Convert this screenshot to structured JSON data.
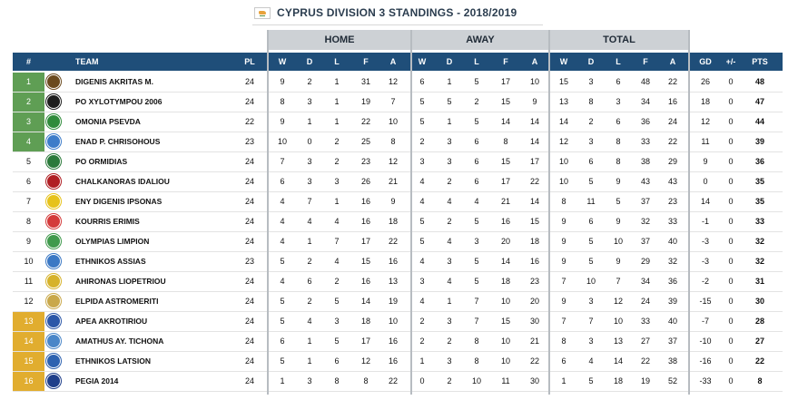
{
  "title": {
    "flag_icon": "cyprus-flag-icon",
    "text": "CYPRUS DIVISION 3 STANDINGS - 2018/2019"
  },
  "groups": {
    "home": "HOME",
    "away": "AWAY",
    "total": "TOTAL"
  },
  "columns": [
    "#",
    "TEAM",
    "PL",
    "W",
    "D",
    "L",
    "F",
    "A",
    "W",
    "D",
    "L",
    "F",
    "A",
    "W",
    "D",
    "L",
    "F",
    "A",
    "GD",
    "+/-",
    "PTS"
  ],
  "colors": {
    "header_bg": "#1f4e79",
    "group_bg": "#cdd1d5",
    "promotion": "#5f9e54",
    "relegation": "#e1ad2f"
  },
  "rows": [
    {
      "pos": "1",
      "zone": "green",
      "team": "DIGENIS AKRITAS M.",
      "logo": "#6b4a1e",
      "pl": "24",
      "hw": "9",
      "hd": "2",
      "hl": "1",
      "hf": "31",
      "ha": "12",
      "aw": "6",
      "ad": "1",
      "al": "5",
      "af": "17",
      "aa": "10",
      "tw": "15",
      "td": "3",
      "tl": "6",
      "tf": "48",
      "ta": "22",
      "gd": "26",
      "pm": "0",
      "pts": "48"
    },
    {
      "pos": "2",
      "zone": "green",
      "team": "PO XYLOTYMPOU 2006",
      "logo": "#1d1d1d",
      "pl": "24",
      "hw": "8",
      "hd": "3",
      "hl": "1",
      "hf": "19",
      "ha": "7",
      "aw": "5",
      "ad": "5",
      "al": "2",
      "af": "15",
      "aa": "9",
      "tw": "13",
      "td": "8",
      "tl": "3",
      "tf": "34",
      "ta": "16",
      "gd": "18",
      "pm": "0",
      "pts": "47"
    },
    {
      "pos": "3",
      "zone": "green",
      "team": "OMONIA PSEVDA",
      "logo": "#2e8b3a",
      "pl": "22",
      "hw": "9",
      "hd": "1",
      "hl": "1",
      "hf": "22",
      "ha": "10",
      "aw": "5",
      "ad": "1",
      "al": "5",
      "af": "14",
      "aa": "14",
      "tw": "14",
      "td": "2",
      "tl": "6",
      "tf": "36",
      "ta": "24",
      "gd": "12",
      "pm": "0",
      "pts": "44"
    },
    {
      "pos": "4",
      "zone": "green",
      "team": "ENAD P. CHRISOHOUS",
      "logo": "#3d7cc9",
      "pl": "23",
      "hw": "10",
      "hd": "0",
      "hl": "2",
      "hf": "25",
      "ha": "8",
      "aw": "2",
      "ad": "3",
      "al": "6",
      "af": "8",
      "aa": "14",
      "tw": "12",
      "td": "3",
      "tl": "8",
      "tf": "33",
      "ta": "22",
      "gd": "11",
      "pm": "0",
      "pts": "39"
    },
    {
      "pos": "5",
      "zone": "",
      "team": "PO ORMIDIAS",
      "logo": "#2a7a3a",
      "pl": "24",
      "hw": "7",
      "hd": "3",
      "hl": "2",
      "hf": "23",
      "ha": "12",
      "aw": "3",
      "ad": "3",
      "al": "6",
      "af": "15",
      "aa": "17",
      "tw": "10",
      "td": "6",
      "tl": "8",
      "tf": "38",
      "ta": "29",
      "gd": "9",
      "pm": "0",
      "pts": "36"
    },
    {
      "pos": "6",
      "zone": "",
      "team": "CHALKANORAS IDALIOU",
      "logo": "#b01e23",
      "pl": "24",
      "hw": "6",
      "hd": "3",
      "hl": "3",
      "hf": "26",
      "ha": "21",
      "aw": "4",
      "ad": "2",
      "al": "6",
      "af": "17",
      "aa": "22",
      "tw": "10",
      "td": "5",
      "tl": "9",
      "tf": "43",
      "ta": "43",
      "gd": "0",
      "pm": "0",
      "pts": "35"
    },
    {
      "pos": "7",
      "zone": "",
      "team": "ENY DIGENIS IPSONAS",
      "logo": "#e6c21a",
      "pl": "24",
      "hw": "4",
      "hd": "7",
      "hl": "1",
      "hf": "16",
      "ha": "9",
      "aw": "4",
      "ad": "4",
      "al": "4",
      "af": "21",
      "aa": "14",
      "tw": "8",
      "td": "11",
      "tl": "5",
      "tf": "37",
      "ta": "23",
      "gd": "14",
      "pm": "0",
      "pts": "35"
    },
    {
      "pos": "8",
      "zone": "",
      "team": "KOURRIS ERIMIS",
      "logo": "#d43a3a",
      "pl": "24",
      "hw": "4",
      "hd": "4",
      "hl": "4",
      "hf": "16",
      "ha": "18",
      "aw": "5",
      "ad": "2",
      "al": "5",
      "af": "16",
      "aa": "15",
      "tw": "9",
      "td": "6",
      "tl": "9",
      "tf": "32",
      "ta": "33",
      "gd": "-1",
      "pm": "0",
      "pts": "33"
    },
    {
      "pos": "9",
      "zone": "",
      "team": "OLYMPIAS LIMPION",
      "logo": "#3f9a4c",
      "pl": "24",
      "hw": "4",
      "hd": "1",
      "hl": "7",
      "hf": "17",
      "ha": "22",
      "aw": "5",
      "ad": "4",
      "al": "3",
      "af": "20",
      "aa": "18",
      "tw": "9",
      "td": "5",
      "tl": "10",
      "tf": "37",
      "ta": "40",
      "gd": "-3",
      "pm": "0",
      "pts": "32"
    },
    {
      "pos": "10",
      "zone": "",
      "team": "ETHNIKOS ASSIAS",
      "logo": "#3b78c4",
      "pl": "23",
      "hw": "5",
      "hd": "2",
      "hl": "4",
      "hf": "15",
      "ha": "16",
      "aw": "4",
      "ad": "3",
      "al": "5",
      "af": "14",
      "aa": "16",
      "tw": "9",
      "td": "5",
      "tl": "9",
      "tf": "29",
      "ta": "32",
      "gd": "-3",
      "pm": "0",
      "pts": "32"
    },
    {
      "pos": "11",
      "zone": "",
      "team": "AHIRONAS LIOPETRIOU",
      "logo": "#d6b22a",
      "pl": "24",
      "hw": "4",
      "hd": "6",
      "hl": "2",
      "hf": "16",
      "ha": "13",
      "aw": "3",
      "ad": "4",
      "al": "5",
      "af": "18",
      "aa": "23",
      "tw": "7",
      "td": "10",
      "tl": "7",
      "tf": "34",
      "ta": "36",
      "gd": "-2",
      "pm": "0",
      "pts": "31"
    },
    {
      "pos": "12",
      "zone": "",
      "team": "ELPIDA ASTROMERITI",
      "logo": "#c9a84a",
      "pl": "24",
      "hw": "5",
      "hd": "2",
      "hl": "5",
      "hf": "14",
      "ha": "19",
      "aw": "4",
      "ad": "1",
      "al": "7",
      "af": "10",
      "aa": "20",
      "tw": "9",
      "td": "3",
      "tl": "12",
      "tf": "24",
      "ta": "39",
      "gd": "-15",
      "pm": "0",
      "pts": "30"
    },
    {
      "pos": "13",
      "zone": "gold",
      "team": "APEA AKROTIRIOU",
      "logo": "#2c57a8",
      "pl": "24",
      "hw": "5",
      "hd": "4",
      "hl": "3",
      "hf": "18",
      "ha": "10",
      "aw": "2",
      "ad": "3",
      "al": "7",
      "af": "15",
      "aa": "30",
      "tw": "7",
      "td": "7",
      "tl": "10",
      "tf": "33",
      "ta": "40",
      "gd": "-7",
      "pm": "0",
      "pts": "28"
    },
    {
      "pos": "14",
      "zone": "gold",
      "team": "AMATHUS AY. TICHONA",
      "logo": "#4a86c8",
      "pl": "24",
      "hw": "6",
      "hd": "1",
      "hl": "5",
      "hf": "17",
      "ha": "16",
      "aw": "2",
      "ad": "2",
      "al": "8",
      "af": "10",
      "aa": "21",
      "tw": "8",
      "td": "3",
      "tl": "13",
      "tf": "27",
      "ta": "37",
      "gd": "-10",
      "pm": "0",
      "pts": "27"
    },
    {
      "pos": "15",
      "zone": "gold",
      "team": "ETHNIKOS LATSION",
      "logo": "#2d62b0",
      "pl": "24",
      "hw": "5",
      "hd": "1",
      "hl": "6",
      "hf": "12",
      "ha": "16",
      "aw": "1",
      "ad": "3",
      "al": "8",
      "af": "10",
      "aa": "22",
      "tw": "6",
      "td": "4",
      "tl": "14",
      "tf": "22",
      "ta": "38",
      "gd": "-16",
      "pm": "0",
      "pts": "22"
    },
    {
      "pos": "16",
      "zone": "gold",
      "team": "PEGIA 2014",
      "logo": "#1f3f8a",
      "pl": "24",
      "hw": "1",
      "hd": "3",
      "hl": "8",
      "hf": "8",
      "ha": "22",
      "aw": "0",
      "ad": "2",
      "al": "10",
      "af": "11",
      "aa": "30",
      "tw": "1",
      "td": "5",
      "tl": "18",
      "tf": "19",
      "ta": "52",
      "gd": "-33",
      "pm": "0",
      "pts": "8"
    }
  ]
}
